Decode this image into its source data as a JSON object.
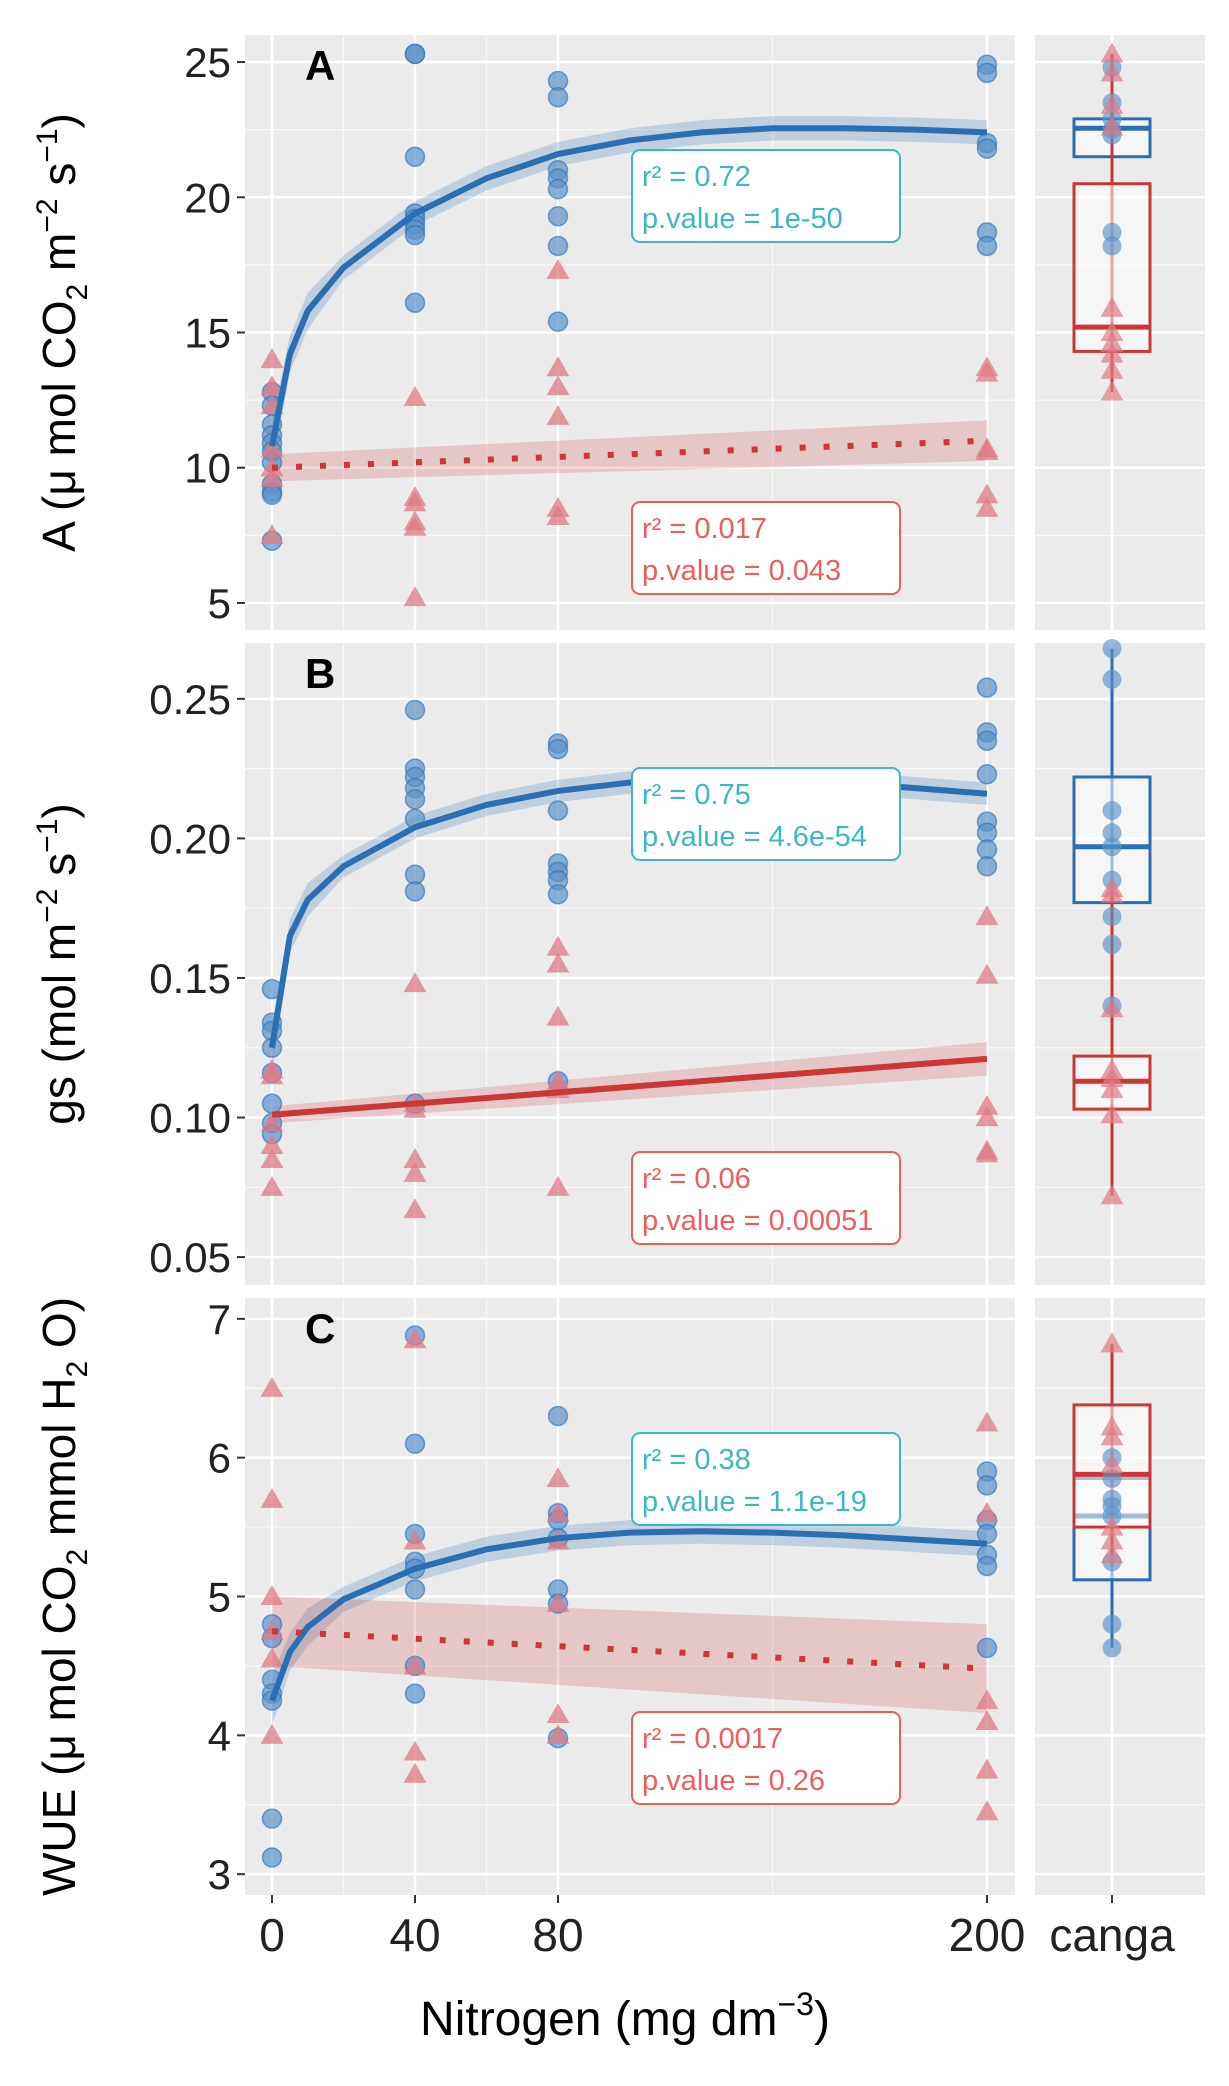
{
  "figure": {
    "x_axis_title": "Nitrogen (mg dm",
    "x_axis_title_sup": "−3",
    "x_axis_title_end": ")",
    "x_ticks": [
      "0",
      "40",
      "80",
      "200"
    ],
    "canga_label": "canga"
  },
  "colors": {
    "blue": "#2a6fb3",
    "blue_point": "#5b93c9",
    "red": "#cc3636",
    "red_point": "#de7a84",
    "stat_blue": "#3bb8c2",
    "stat_red": "#ef5d5a",
    "panel_bg": "#ebebeb",
    "grid": "#ffffff"
  },
  "chart_data": [
    {
      "type": "scatter",
      "panel": "A",
      "ylabel": "A (μ mol CO2 m−2 s−1)",
      "ylabel_parts": [
        "A (μ mol CO",
        "2",
        " m",
        "−2",
        " s",
        "−1",
        ")"
      ],
      "ylim": [
        4,
        26
      ],
      "yticks": [
        5,
        10,
        15,
        20,
        25
      ],
      "ytick_labels": [
        "5",
        "10",
        "15",
        "20",
        "25"
      ],
      "x_categories": [
        0,
        40,
        80,
        200
      ],
      "series": [
        {
          "color_key": "blue",
          "marker": "circle",
          "points": {
            "0": [
              12.8,
              12.3,
              11.6,
              11.2,
              10.9,
              10.6,
              10.2,
              9.4,
              9.1,
              9.0,
              7.3
            ],
            "40": [
              25.3,
              25.3,
              21.5,
              19.4,
              19.2,
              19.0,
              18.8,
              18.6,
              16.1
            ],
            "80": [
              24.3,
              23.7,
              21.0,
              20.7,
              20.3,
              19.3,
              18.2,
              15.4
            ],
            "200": [
              24.9,
              24.6,
              22.0,
              21.8,
              18.7,
              18.2
            ]
          },
          "fit": {
            "style": "solid",
            "x": [
              0,
              5,
              10,
              20,
              40,
              60,
              80,
              100,
              120,
              140,
              160,
              180,
              200
            ],
            "y": [
              10.8,
              14.2,
              15.8,
              17.4,
              19.4,
              20.7,
              21.6,
              22.1,
              22.4,
              22.55,
              22.55,
              22.5,
              22.4
            ],
            "band": 0.45
          },
          "stats": {
            "r2": "r² =  0.72",
            "p": "p.value = 1e-50"
          }
        },
        {
          "color_key": "red",
          "marker": "triangle",
          "points": {
            "0": [
              14.0,
              13.0,
              12.3,
              10.7,
              10.0,
              9.6,
              7.5
            ],
            "40": [
              12.6,
              8.9,
              8.7,
              8.0,
              7.8,
              5.2
            ],
            "80": [
              17.3,
              13.7,
              13.0,
              11.9,
              8.5,
              8.2
            ],
            "200": [
              13.7,
              13.5,
              10.7,
              10.6,
              9.0,
              8.5
            ]
          },
          "fit": {
            "style": "dotted",
            "x": [
              0,
              200
            ],
            "y": [
              10.0,
              11.0
            ],
            "band_left": 0.5,
            "band_right": 0.75
          },
          "stats": {
            "r2": "r² =  0.017",
            "p": "p.value = 0.043"
          }
        }
      ],
      "canga": [
        {
          "color_key": "blue",
          "box": [
            21.5,
            22.55,
            22.9
          ],
          "whisker": [
            21.5,
            22.9
          ],
          "points": [
            24.8,
            23.5,
            22.9,
            22.5,
            22.3,
            18.7,
            18.2
          ]
        },
        {
          "color_key": "red",
          "box": [
            14.3,
            15.2,
            20.5
          ],
          "whisker": [
            12.8,
            25.3
          ],
          "points": [
            25.3,
            24.6,
            23.4,
            22.6,
            15.9,
            15.0,
            14.6,
            14.2,
            13.6,
            12.8
          ]
        }
      ]
    },
    {
      "type": "scatter",
      "panel": "B",
      "ylabel": "gs (mol m−2 s−1)",
      "ylabel_parts": [
        "gs (mol m",
        "−2",
        " s",
        "−1",
        ")"
      ],
      "ylim": [
        0.04,
        0.27
      ],
      "yticks": [
        0.05,
        0.1,
        0.15,
        0.2,
        0.25
      ],
      "ytick_labels": [
        "0.05",
        "0.10",
        "0.15",
        "0.20",
        "0.25"
      ],
      "x_categories": [
        0,
        40,
        80,
        200
      ],
      "series": [
        {
          "color_key": "blue",
          "marker": "circle",
          "points": {
            "0": [
              0.146,
              0.134,
              0.131,
              0.125,
              0.116,
              0.105,
              0.098,
              0.094
            ],
            "40": [
              0.246,
              0.225,
              0.222,
              0.218,
              0.214,
              0.207,
              0.187,
              0.181,
              0.105
            ],
            "80": [
              0.234,
              0.232,
              0.21,
              0.191,
              0.188,
              0.185,
              0.18,
              0.113
            ],
            "200": [
              0.254,
              0.238,
              0.235,
              0.223,
              0.206,
              0.202,
              0.196,
              0.19
            ]
          },
          "fit": {
            "style": "solid",
            "x": [
              0,
              5,
              10,
              20,
              40,
              60,
              80,
              100,
              120,
              140,
              160,
              180,
              200
            ],
            "y": [
              0.125,
              0.165,
              0.178,
              0.19,
              0.204,
              0.212,
              0.217,
              0.22,
              0.221,
              0.221,
              0.22,
              0.218,
              0.216
            ],
            "band": 0.004
          },
          "stats": {
            "r2": "r² =  0.75",
            "p": "p.value = 4.6e-54"
          }
        },
        {
          "color_key": "red",
          "marker": "triangle",
          "points": {
            "0": [
              0.117,
              0.115,
              0.098,
              0.09,
              0.085,
              0.075
            ],
            "40": [
              0.148,
              0.105,
              0.103,
              0.085,
              0.08,
              0.067
            ],
            "80": [
              0.161,
              0.155,
              0.136,
              0.113,
              0.11,
              0.075
            ],
            "200": [
              0.172,
              0.151,
              0.104,
              0.1,
              0.088,
              0.087
            ]
          },
          "fit": {
            "style": "solid",
            "x": [
              0,
              200
            ],
            "y": [
              0.101,
              0.121
            ],
            "band_left": 0.003,
            "band_right": 0.006
          },
          "stats": {
            "r2": "r² =  0.06",
            "p": "p.value = 0.00051"
          }
        }
      ],
      "canga": [
        {
          "color_key": "blue",
          "box": [
            0.177,
            0.197,
            0.222
          ],
          "whisker": [
            0.14,
            0.268
          ],
          "points": [
            0.268,
            0.257,
            0.21,
            0.202,
            0.197,
            0.185,
            0.172,
            0.162,
            0.14
          ]
        },
        {
          "color_key": "red",
          "box": [
            0.103,
            0.113,
            0.122
          ],
          "whisker": [
            0.072,
            0.182
          ],
          "points": [
            0.182,
            0.18,
            0.139,
            0.117,
            0.114,
            0.11,
            0.101,
            0.072
          ]
        }
      ]
    },
    {
      "type": "scatter",
      "panel": "C",
      "ylabel": "WUE (μ mol CO2 mmol H2 O)",
      "ylabel_parts": [
        "WUE (μ mol CO",
        "2",
        " mmol H",
        "2",
        " O)"
      ],
      "ylim": [
        2.85,
        7.15
      ],
      "yticks": [
        3,
        4,
        5,
        6,
        7
      ],
      "ytick_labels": [
        "3",
        "4",
        "5",
        "6",
        "7"
      ],
      "x_categories": [
        0,
        40,
        80,
        200
      ],
      "series": [
        {
          "color_key": "blue",
          "marker": "circle",
          "points": {
            "0": [
              4.8,
              4.7,
              4.4,
              4.3,
              4.25,
              3.4,
              3.12
            ],
            "40": [
              6.88,
              6.1,
              5.45,
              5.25,
              5.2,
              5.05,
              4.5,
              4.3
            ],
            "80": [
              6.3,
              5.6,
              5.55,
              5.42,
              5.05,
              4.95,
              3.98
            ],
            "200": [
              5.9,
              5.8,
              5.55,
              5.45,
              5.3,
              5.22,
              4.63
            ]
          },
          "fit": {
            "style": "solid",
            "x": [
              0,
              5,
              10,
              20,
              40,
              60,
              80,
              100,
              120,
              140,
              160,
              180,
              200
            ],
            "y": [
              4.25,
              4.6,
              4.78,
              4.98,
              5.2,
              5.34,
              5.42,
              5.46,
              5.47,
              5.46,
              5.44,
              5.41,
              5.38
            ],
            "band": 0.09
          },
          "stats": {
            "r2": "r² =  0.38",
            "p": "p.value = 1.1e-19"
          }
        },
        {
          "color_key": "red",
          "marker": "triangle",
          "points": {
            "0": [
              6.5,
              5.7,
              5.0,
              4.75,
              4.55,
              4.0
            ],
            "40": [
              6.85,
              5.4,
              4.5,
              3.88,
              3.72
            ],
            "80": [
              5.85,
              5.6,
              5.4,
              4.95,
              4.15,
              4.0
            ],
            "200": [
              6.25,
              5.6,
              4.25,
              4.1,
              3.75,
              3.45
            ]
          },
          "fit": {
            "style": "dotted",
            "x": [
              0,
              200
            ],
            "y": [
              4.75,
              4.48
            ],
            "band_left": 0.25,
            "band_right": 0.32
          },
          "stats": {
            "r2": "r² =  0.0017",
            "p": "p.value = 0.26"
          }
        }
      ],
      "canga": [
        {
          "color_key": "blue",
          "box": [
            5.12,
            5.58,
            5.85
          ],
          "whisker": [
            4.63,
            5.85
          ],
          "points": [
            6.0,
            5.85,
            5.7,
            5.65,
            5.58,
            5.25,
            4.8,
            4.63
          ]
        },
        {
          "color_key": "red",
          "box": [
            5.5,
            5.88,
            6.38
          ],
          "whisker": [
            5.3,
            6.82
          ],
          "points": [
            6.82,
            6.22,
            6.15,
            5.95,
            5.5,
            5.4,
            5.3
          ]
        }
      ]
    }
  ]
}
